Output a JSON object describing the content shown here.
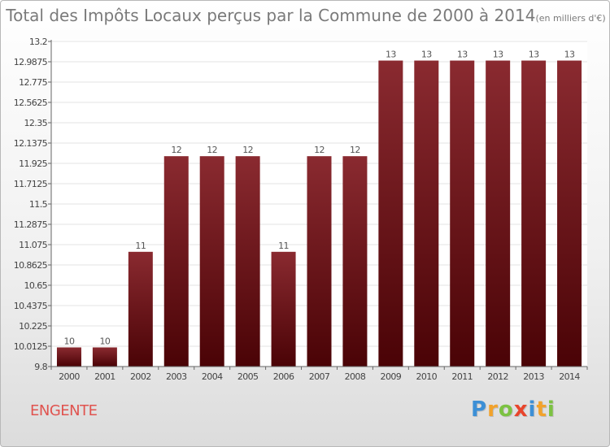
{
  "page": {
    "title": "Total des Impôts Locaux perçus par la Commune de 2000 à 2014",
    "title_unit": "(en milliers d'€)",
    "commune": "ENGENTE",
    "logo": {
      "letters": [
        "P",
        "r",
        "o",
        "x",
        "i",
        "t",
        "i"
      ],
      "colors": [
        "#3c8fd6",
        "#f2a22b",
        "#7cc242",
        "#e8452c",
        "#3c8fd6",
        "#f2a22b",
        "#7cc242"
      ]
    }
  },
  "chart_data": {
    "type": "bar",
    "title": "Total des Impôts Locaux perçus par la Commune de 2000 à 2014",
    "xlabel": "",
    "ylabel": "",
    "ylim": [
      9.8,
      13.2
    ],
    "yticks": [
      "9.8",
      "10.0125",
      "10.225",
      "10.4375",
      "10.65",
      "10.8625",
      "11.075",
      "11.2875",
      "11.5",
      "11.7125",
      "11.925",
      "12.1375",
      "12.35",
      "12.5625",
      "12.775",
      "12.9875",
      "13.2"
    ],
    "categories": [
      "2000",
      "2001",
      "2002",
      "2003",
      "2004",
      "2005",
      "2006",
      "2007",
      "2008",
      "2009",
      "2010",
      "2011",
      "2012",
      "2013",
      "2014"
    ],
    "values": [
      10,
      10,
      11,
      12,
      12,
      12,
      11,
      12,
      12,
      13,
      13,
      13,
      13,
      13,
      13
    ],
    "labels": [
      "10",
      "10",
      "11",
      "12",
      "12",
      "12",
      "11",
      "12",
      "12",
      "13",
      "13",
      "13",
      "13",
      "13",
      "13"
    ],
    "grid": true,
    "bar_color": "#6e0d14"
  }
}
